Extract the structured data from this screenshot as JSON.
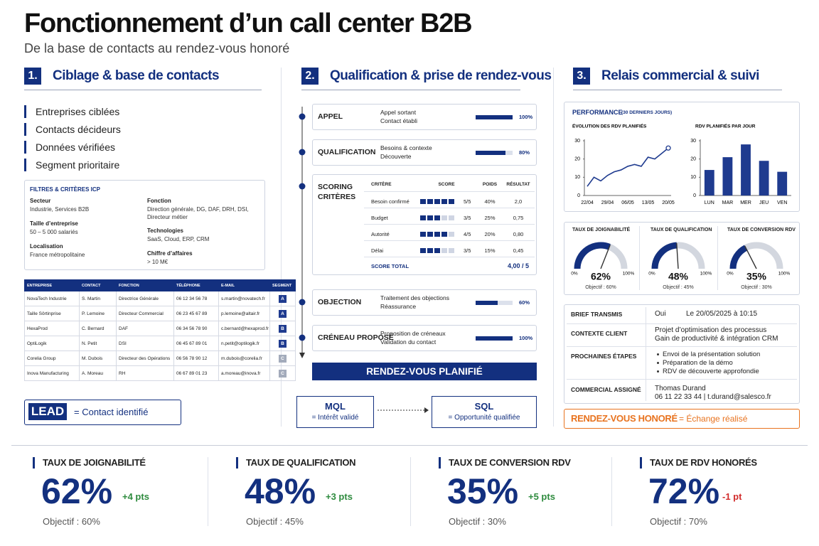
{
  "header": {
    "title": "Fonctionnement d’un call center B2B",
    "subtitle": "De la base de contacts au rendez-vous honoré"
  },
  "section1": {
    "number": "1.",
    "title": "Ciblage & base de contacts",
    "items": [
      "Entreprises ciblées",
      "Contacts décideurs",
      "Données vérifiées",
      "Segment prioritaire"
    ],
    "filters": {
      "title": "FILTRES & CRITÈRES ICP",
      "left": [
        {
          "label": "Secteur",
          "value": "Industrie, Services B2B"
        },
        {
          "label": "Taille d’entreprise",
          "value": "50 – 5 000 salariés"
        },
        {
          "label": "Localisation",
          "value": "France métropolitaine"
        }
      ],
      "right": [
        {
          "label": "Fonction",
          "value": "Direction générale, DG, DAF, DRH, DSI, Directeur métier"
        },
        {
          "label": "Technologies",
          "value": "SaaS, Cloud, ERP, CRM"
        },
        {
          "label": "Chiffre d’affaires",
          "value": "> 10 M€"
        }
      ]
    },
    "table": {
      "columns": [
        "ENTREPRISE",
        "CONTACT",
        "FONCTION",
        "TÉLÉPHONE",
        "E-MAIL",
        "SEGMENT"
      ],
      "rows": [
        [
          "NovaTech Industrie",
          "S. Martin",
          "Directrice Générale",
          "06 12 34 56 78",
          "s.martin@novatech.fr",
          "A"
        ],
        [
          "Taille Sôrtinprise",
          "P. Lemoine",
          "Directeur Commercial",
          "06 23 45 67 89",
          "p.lemoine@altair.fr",
          "A"
        ],
        [
          "HexaProd",
          "C. Bernard",
          "DAF",
          "06 34 56 78 90",
          "c.bernard@hexaprod.fr",
          "B"
        ],
        [
          "OptiLogik",
          "N. Petit",
          "DSI",
          "06 45 67 89 01",
          "n.petit@optilogik.fr",
          "B"
        ],
        [
          "Corelia Group",
          "M. Dubois",
          "Directeur des Opérations",
          "06 56 78 90 12",
          "m.dubois@corelia.fr",
          "C"
        ],
        [
          "Inova Manufacturing",
          "A. Moreau",
          "RH",
          "06 67 89 01 23",
          "a.moreau@inova.fr",
          "C"
        ]
      ],
      "segment_colors": {
        "A": "#1f3b8f",
        "B": "#1f3b8f",
        "C": "#a3abbb"
      }
    },
    "lead": {
      "badge": "LEAD",
      "text": "= Contact identifié"
    }
  },
  "section2": {
    "number": "2.",
    "title": "Qualification & prise de rendez-vous",
    "steps": [
      {
        "name": "APPEL",
        "lines": [
          "Appel sortant",
          "Contact établi"
        ],
        "progress": 100,
        "progress_label": "100%"
      },
      {
        "name": "QUALIFICATION",
        "lines": [
          "Besoins & contexte",
          "Découverte"
        ],
        "progress": 80,
        "progress_label": "80%"
      },
      {
        "name": "OBJECTION",
        "lines": [
          "Traitement des objections",
          "Réassurance"
        ],
        "progress": 60,
        "progress_label": "60%"
      },
      {
        "name": "CRÉNEAU PROPOSÉ",
        "lines": [
          "Proposition de créneaux",
          "Validation du contact"
        ],
        "progress": 100,
        "progress_label": "100%"
      }
    ],
    "scoring": {
      "name": "SCORING CRITÈRES",
      "columns": [
        "CRITÈRE",
        "SCORE",
        "POIDS",
        "RÉSULTAT"
      ],
      "rows": [
        {
          "criterion": "Besoin confirmé",
          "score": 5,
          "score_label": "5/5",
          "weight": "40%",
          "result": "2,0"
        },
        {
          "criterion": "Budget",
          "score": 3,
          "score_label": "3/5",
          "weight": "25%",
          "result": "0,75"
        },
        {
          "criterion": "Autorité",
          "score": 4,
          "score_label": "4/5",
          "weight": "20%",
          "result": "0,80"
        },
        {
          "criterion": "Délai",
          "score": 3,
          "score_label": "3/5",
          "weight": "15%",
          "result": "0,45"
        }
      ],
      "total": {
        "label": "SCORE TOTAL",
        "value": "4,00 / 5"
      }
    },
    "banner": "RENDEZ-VOUS PLANIFIÉ",
    "mql": {
      "title": "MQL",
      "text": "= Intérêt validé"
    },
    "sql": {
      "title": "SQL",
      "text": "= Opportunité qualifiée"
    }
  },
  "section3": {
    "number": "3.",
    "title": "Relais commercial & suivi",
    "performance": {
      "title": "PERFORMANCE",
      "subtitle": "(30 DERNIERS JOURS)",
      "line_chart": {
        "type": "line",
        "title": "ÉVOLUTION DES RDV PLANIFIÉS",
        "categories": [
          "22/04",
          null,
          null,
          "29/04",
          null,
          null,
          "06/05",
          null,
          null,
          "13/05",
          null,
          null,
          "20/05"
        ],
        "values": [
          5,
          10,
          8,
          11,
          13,
          14,
          16,
          17,
          16,
          21,
          20,
          23,
          26
        ],
        "ylim": [
          0,
          30
        ],
        "yticks": [
          0,
          10,
          20,
          30
        ],
        "color": "#1f3b8f"
      },
      "bar_chart": {
        "type": "bar",
        "title": "RDV PLANIFIÉS PAR JOUR",
        "categories": [
          "LUN",
          "MAR",
          "MER",
          "JEU",
          "VEN"
        ],
        "values": [
          14,
          21,
          28,
          19,
          13
        ],
        "ylim": [
          0,
          30
        ],
        "yticks": [
          0,
          10,
          20,
          30
        ],
        "color": "#1f3b8f"
      }
    },
    "gauges": [
      {
        "title": "TAUX DE JOIGNABILITÉ",
        "value": 62,
        "value_label": "62%",
        "target": "Objectif : 60%",
        "min": {
          "value": 0,
          "label": "0%"
        },
        "max": {
          "value": 100,
          "label": "100%"
        }
      },
      {
        "title": "TAUX DE QUALIFICATION",
        "value": 48,
        "value_label": "48%",
        "target": "Objectif : 45%",
        "min": {
          "value": 0,
          "label": "0%"
        },
        "max": {
          "value": 100,
          "label": "100%"
        }
      },
      {
        "title": "TAUX DE CONVERSION RDV",
        "value": 35,
        "value_label": "35%",
        "target": "Objectif : 30%",
        "min": {
          "value": 0,
          "label": "0%"
        },
        "max": {
          "value": 100,
          "label": "100%"
        }
      }
    ],
    "brief": {
      "status_row": {
        "label": "BRIEF TRANSMIS",
        "status": "Oui",
        "date": "Le 20/05/2025 à 10:15"
      },
      "context": {
        "label": "CONTEXTE CLIENT",
        "lines": [
          "Projet d’optimisation des processus",
          "Gain de productivité & intégration CRM"
        ]
      },
      "next_steps": {
        "label": "PROCHAINES ÉTAPES",
        "bullets": [
          "Envoi de la présentation solution",
          "Préparation de la démo",
          "RDV de découverte approfondie"
        ]
      },
      "assigned": {
        "label": "COMMERCIAL ASSIGNÉ",
        "lines": [
          "Thomas Durand",
          "06 11 22 33 44 | t.durand@salesco.fr"
        ]
      }
    },
    "honored": {
      "title": "RENDEZ-VOUS HONORÉ",
      "text": "= Échange réalisé"
    }
  },
  "kpis": [
    {
      "label": "TAUX DE JOIGNABILITÉ",
      "value": "62%",
      "delta": "+4 pts",
      "delta_color": "#2e8b3e",
      "target": "Objectif : 60%"
    },
    {
      "label": "TAUX DE QUALIFICATION",
      "value": "48%",
      "delta": "+3 pts",
      "delta_color": "#2e8b3e",
      "target": "Objectif : 45%"
    },
    {
      "label": "TAUX DE CONVERSION RDV",
      "value": "35%",
      "delta": "+5 pts",
      "delta_color": "#2e8b3e",
      "target": "Objectif : 30%"
    },
    {
      "label": "TAUX DE RDV HONORÉS",
      "value": "72%",
      "delta": "-1 pt",
      "delta_color": "#d22c2c",
      "target": "Objectif : 70%"
    }
  ]
}
